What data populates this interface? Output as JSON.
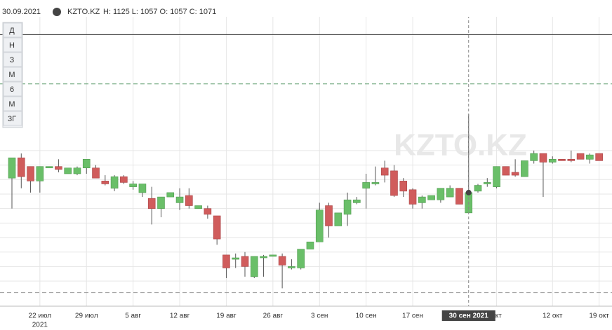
{
  "header": {
    "date": "30.09.2021",
    "ticker": "KZTO.KZ",
    "ohlc": "H: 1125 L: 1057 O: 1057 C: 1071"
  },
  "periods": [
    "Д",
    "Н",
    "З",
    "М",
    "6",
    "М",
    "3Г"
  ],
  "watermark": "KZTO.KZ",
  "chart_data": {
    "type": "candlestick",
    "categories": [
      null,
      null,
      null,
      "22 июл",
      null,
      null,
      null,
      null,
      "29 июл",
      null,
      null,
      null,
      null,
      "5 авг",
      null,
      null,
      null,
      null,
      "12 авг",
      null,
      null,
      null,
      null,
      "19 авг",
      null,
      null,
      null,
      null,
      "26 авг",
      null,
      null,
      null,
      null,
      "3 сен",
      null,
      null,
      null,
      null,
      "10 сен",
      null,
      null,
      null,
      null,
      "17 сен",
      null,
      null,
      null,
      null,
      null,
      "30 сен 2021",
      null,
      null,
      "окт",
      null,
      null,
      null,
      null,
      null,
      "12 окт",
      null,
      null,
      null,
      null,
      "19 окт"
    ],
    "year_label": "2021",
    "selected": 49,
    "open": [
      1081,
      1095,
      1089,
      1079,
      1088,
      1089,
      1084,
      1084,
      1088,
      1088,
      1079,
      1074,
      1082,
      1075,
      1071,
      1067,
      1060,
      1068,
      1064,
      1069,
      1060,
      1060,
      1055,
      1028,
      1025,
      1027,
      1013,
      1026,
      1027,
      1027,
      1019,
      1019,
      1032,
      1037,
      1062,
      1048,
      1056,
      1064,
      1074,
      1077,
      1088,
      1086,
      1079,
      1073,
      1064,
      1066,
      1066,
      1068,
      1074,
      1057,
      1072,
      1077,
      1075,
      1089,
      1085,
      1082,
      1093,
      1098,
      1092,
      1094,
      1094,
      1098,
      1094,
      1098
    ],
    "high": [
      1095,
      1098,
      1089,
      1089,
      1089,
      1094,
      1088,
      1089,
      1094,
      1090,
      1083,
      1083,
      1083,
      1079,
      1077,
      1075,
      1068,
      1071,
      1074,
      1074,
      1062,
      1062,
      1055,
      1028,
      1029,
      1030,
      1027,
      1028,
      1028,
      1029,
      1025,
      1032,
      1037,
      1064,
      1064,
      1057,
      1071,
      1068,
      1084,
      1089,
      1093,
      1090,
      1081,
      1074,
      1069,
      1069,
      1074,
      1076,
      1074,
      1125,
      1077,
      1081,
      1089,
      1089,
      1094,
      1093,
      1100,
      1098,
      1096,
      1094,
      1100,
      1098,
      1098,
      1098
    ],
    "low": [
      1060,
      1074,
      1071,
      1071,
      1088,
      1085,
      1084,
      1083,
      1084,
      1081,
      1076,
      1072,
      1077,
      1073,
      1068,
      1049,
      1054,
      1068,
      1059,
      1060,
      1060,
      1053,
      1035,
      1012,
      1019,
      1013,
      1012,
      1013,
      1027,
      1005,
      1018,
      1018,
      1032,
      1037,
      1040,
      1048,
      1048,
      1063,
      1060,
      1076,
      1078,
      1068,
      1068,
      1060,
      1060,
      1066,
      1064,
      1068,
      1063,
      1057,
      1071,
      1075,
      1074,
      1083,
      1082,
      1082,
      1091,
      1068,
      1091,
      1093,
      1092,
      1094,
      1091,
      1093
    ],
    "close": [
      1095,
      1082,
      1079,
      1089,
      1089,
      1087,
      1088,
      1088,
      1094,
      1081,
      1077,
      1082,
      1078,
      1077,
      1077,
      1060,
      1068,
      1071,
      1068,
      1062,
      1062,
      1056,
      1039,
      1019,
      1026,
      1020,
      1027,
      1027,
      1028,
      1021,
      1020,
      1032,
      1037,
      1059,
      1048,
      1057,
      1066,
      1066,
      1078,
      1078,
      1083,
      1069,
      1072,
      1063,
      1068,
      1069,
      1074,
      1074,
      1063,
      1071,
      1076,
      1078,
      1089,
      1083,
      1083,
      1093,
      1098,
      1092,
      1094,
      1093,
      1093,
      1094,
      1097,
      1093
    ],
    "up_color": "#6abf69",
    "down_color": "#d05c5c",
    "ylim": [
      997,
      1200
    ],
    "yticks": [
      1010,
      1020,
      1030,
      1040,
      1050,
      1060,
      1070,
      1080,
      1090,
      1100
    ],
    "grid": true,
    "levels": [
      {
        "value": 1180,
        "style": "solid",
        "color": "#333333"
      },
      {
        "value": 1146,
        "style": "dashed",
        "color": "#5a9a6a"
      },
      {
        "value": 1002,
        "style": "dashed",
        "color": "#999999"
      }
    ]
  }
}
